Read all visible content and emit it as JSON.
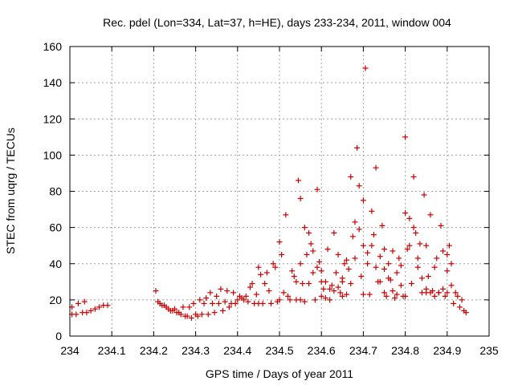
{
  "chart_data": {
    "type": "scatter",
    "title": "Rec. pdel (Lon=334, Lat=37, h=HE), days 233-234, 2011, window 004",
    "xlabel": "GPS time / Days of year 2011",
    "ylabel": "STEC from uqrg / TECUs",
    "xlim": [
      234,
      235
    ],
    "ylim": [
      0,
      160
    ],
    "x_ticks": [
      "234",
      "234.1",
      "234.2",
      "234.3",
      "234.4",
      "234.5",
      "234.6",
      "234.7",
      "234.8",
      "234.9",
      "235"
    ],
    "y_ticks": [
      "0",
      "20",
      "40",
      "60",
      "80",
      "100",
      "120",
      "140",
      "160"
    ],
    "grid": true,
    "marker": "+",
    "color": "#cc0000",
    "points": [
      [
        234.005,
        16
      ],
      [
        234.005,
        12
      ],
      [
        234.015,
        12
      ],
      [
        234.02,
        18
      ],
      [
        234.03,
        13
      ],
      [
        234.035,
        19
      ],
      [
        234.04,
        13
      ],
      [
        234.05,
        14
      ],
      [
        234.06,
        15
      ],
      [
        234.07,
        16
      ],
      [
        234.08,
        17
      ],
      [
        234.09,
        17
      ],
      [
        234.205,
        25
      ],
      [
        234.21,
        19
      ],
      [
        234.215,
        18
      ],
      [
        234.22,
        17
      ],
      [
        234.225,
        17
      ],
      [
        234.23,
        16
      ],
      [
        234.235,
        15
      ],
      [
        234.24,
        14
      ],
      [
        234.245,
        14
      ],
      [
        234.25,
        15
      ],
      [
        234.255,
        13
      ],
      [
        234.26,
        13
      ],
      [
        234.265,
        12
      ],
      [
        234.27,
        16
      ],
      [
        234.275,
        11
      ],
      [
        234.28,
        11
      ],
      [
        234.285,
        16
      ],
      [
        234.29,
        10
      ],
      [
        234.295,
        18
      ],
      [
        234.3,
        12
      ],
      [
        234.305,
        11
      ],
      [
        234.31,
        20
      ],
      [
        234.315,
        12
      ],
      [
        234.32,
        18
      ],
      [
        234.325,
        21
      ],
      [
        234.33,
        12
      ],
      [
        234.335,
        24
      ],
      [
        234.34,
        18
      ],
      [
        234.345,
        13
      ],
      [
        234.35,
        22
      ],
      [
        234.355,
        18
      ],
      [
        234.36,
        26
      ],
      [
        234.365,
        14
      ],
      [
        234.37,
        19
      ],
      [
        234.375,
        25
      ],
      [
        234.38,
        16
      ],
      [
        234.385,
        18
      ],
      [
        234.39,
        24
      ],
      [
        234.395,
        18
      ],
      [
        234.4,
        20
      ],
      [
        234.405,
        22
      ],
      [
        234.41,
        21
      ],
      [
        234.415,
        20
      ],
      [
        234.42,
        22
      ],
      [
        234.425,
        19
      ],
      [
        234.43,
        27
      ],
      [
        234.435,
        29
      ],
      [
        234.44,
        18
      ],
      [
        234.445,
        23
      ],
      [
        234.45,
        38
      ],
      [
        234.455,
        34
      ],
      [
        234.46,
        18
      ],
      [
        234.465,
        29
      ],
      [
        234.47,
        35
      ],
      [
        234.475,
        25
      ],
      [
        234.48,
        18
      ],
      [
        234.485,
        40
      ],
      [
        234.49,
        38
      ],
      [
        234.495,
        19
      ],
      [
        234.5,
        52
      ],
      [
        234.505,
        45
      ],
      [
        234.51,
        24
      ],
      [
        234.515,
        67
      ],
      [
        234.52,
        22
      ],
      [
        234.525,
        20
      ],
      [
        234.53,
        36
      ],
      [
        234.535,
        33
      ],
      [
        234.54,
        20
      ],
      [
        234.545,
        86
      ],
      [
        234.55,
        40
      ],
      [
        234.555,
        29
      ],
      [
        234.56,
        19
      ],
      [
        234.565,
        45
      ],
      [
        234.57,
        29
      ],
      [
        234.575,
        51
      ],
      [
        234.58,
        35
      ],
      [
        234.585,
        20
      ],
      [
        234.59,
        81
      ],
      [
        234.595,
        41
      ],
      [
        234.6,
        30
      ],
      [
        234.605,
        26
      ],
      [
        234.61,
        21
      ],
      [
        234.615,
        48
      ],
      [
        234.62,
        20
      ],
      [
        234.625,
        28
      ],
      [
        234.63,
        57
      ],
      [
        234.635,
        35
      ],
      [
        234.64,
        45
      ],
      [
        234.645,
        24
      ],
      [
        234.65,
        32
      ],
      [
        234.655,
        40
      ],
      [
        234.66,
        23
      ],
      [
        234.665,
        37
      ],
      [
        234.67,
        88
      ],
      [
        234.675,
        55
      ],
      [
        234.68,
        43
      ],
      [
        234.685,
        104
      ],
      [
        234.69,
        59
      ],
      [
        234.695,
        33
      ],
      [
        234.7,
        75
      ],
      [
        234.705,
        148
      ],
      [
        234.71,
        46
      ],
      [
        234.715,
        23
      ],
      [
        234.72,
        69
      ],
      [
        234.725,
        56
      ],
      [
        234.73,
        93
      ],
      [
        234.735,
        30
      ],
      [
        234.74,
        44
      ],
      [
        234.745,
        61
      ],
      [
        234.75,
        48
      ],
      [
        234.755,
        22
      ],
      [
        234.76,
        40
      ],
      [
        234.765,
        31
      ],
      [
        234.77,
        47
      ],
      [
        234.775,
        21
      ],
      [
        234.78,
        35
      ],
      [
        234.785,
        43
      ],
      [
        234.79,
        28
      ],
      [
        234.795,
        22
      ],
      [
        234.8,
        110
      ],
      [
        234.805,
        48
      ],
      [
        234.81,
        65
      ],
      [
        234.815,
        29
      ],
      [
        234.82,
        88
      ],
      [
        234.825,
        57
      ],
      [
        234.83,
        38
      ],
      [
        234.835,
        51
      ],
      [
        234.84,
        24
      ],
      [
        234.845,
        78
      ],
      [
        234.85,
        50
      ],
      [
        234.855,
        33
      ],
      [
        234.86,
        67
      ],
      [
        234.865,
        25
      ],
      [
        234.87,
        38
      ],
      [
        234.875,
        43
      ],
      [
        234.88,
        24
      ],
      [
        234.885,
        61
      ],
      [
        234.89,
        47
      ],
      [
        234.895,
        22
      ],
      [
        234.9,
        36
      ],
      [
        234.905,
        50
      ],
      [
        234.91,
        28
      ],
      [
        234.915,
        18
      ],
      [
        234.92,
        24
      ],
      [
        234.925,
        22
      ],
      [
        234.93,
        16
      ],
      [
        234.935,
        20
      ],
      [
        234.94,
        14
      ],
      [
        234.945,
        13
      ],
      [
        234.54,
        30
      ],
      [
        234.55,
        76
      ],
      [
        234.56,
        60
      ],
      [
        234.57,
        57
      ],
      [
        234.58,
        47
      ],
      [
        234.59,
        38
      ],
      [
        234.6,
        36
      ],
      [
        234.61,
        30
      ],
      [
        234.62,
        26
      ],
      [
        234.63,
        25
      ],
      [
        234.64,
        27
      ],
      [
        234.65,
        30
      ],
      [
        234.66,
        42
      ],
      [
        234.67,
        29
      ],
      [
        234.68,
        63
      ],
      [
        234.69,
        83
      ],
      [
        234.7,
        50
      ],
      [
        234.71,
        40
      ],
      [
        234.72,
        50
      ],
      [
        234.73,
        38
      ],
      [
        234.74,
        30
      ],
      [
        234.75,
        37
      ],
      [
        234.76,
        32
      ],
      [
        234.77,
        25
      ],
      [
        234.78,
        23
      ],
      [
        234.79,
        39
      ],
      [
        234.8,
        68
      ],
      [
        234.81,
        50
      ],
      [
        234.82,
        60
      ],
      [
        234.83,
        43
      ],
      [
        234.84,
        32
      ],
      [
        234.85,
        26
      ],
      [
        234.86,
        24
      ],
      [
        234.87,
        22
      ],
      [
        234.88,
        24
      ],
      [
        234.89,
        26
      ],
      [
        234.9,
        45
      ],
      [
        234.91,
        40
      ],
      [
        234.45,
        18
      ],
      [
        234.5,
        20
      ],
      [
        234.55,
        20
      ],
      [
        234.6,
        22
      ],
      [
        234.65,
        22
      ],
      [
        234.7,
        23
      ],
      [
        234.75,
        24
      ],
      [
        234.8,
        22
      ],
      [
        234.85,
        24
      ],
      [
        234.9,
        24
      ]
    ]
  }
}
